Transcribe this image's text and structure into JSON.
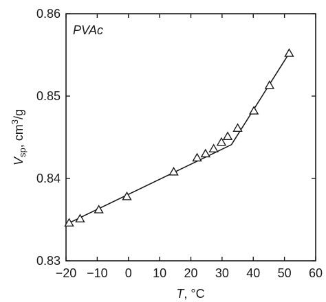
{
  "chart_data": {
    "type": "scatter",
    "panel_label": "PVAc",
    "xlabel_var": "T",
    "xlabel_unit": ", °C",
    "ylabel_var": "V",
    "ylabel_sub": "sp",
    "ylabel_unit": ", cm",
    "ylabel_sup": "3",
    "ylabel_tail": "/g",
    "xlim": [
      -20,
      60
    ],
    "ylim": [
      0.83,
      0.86
    ],
    "x_ticks": [
      -20,
      -10,
      0,
      10,
      20,
      30,
      40,
      50,
      60
    ],
    "x_tick_labels": [
      "−20",
      "−10",
      "0",
      "10",
      "20",
      "30",
      "40",
      "50",
      "60"
    ],
    "y_ticks": [
      0.83,
      0.84,
      0.85,
      0.86
    ],
    "y_tick_labels": [
      "0.83",
      "0.84",
      "0.85",
      "0.86"
    ],
    "grid": false,
    "series": [
      {
        "marker": "triangle-open",
        "x": [
          -19,
          -15.5,
          -9.5,
          -0.5,
          14.5,
          22,
          24.7,
          27.3,
          29.8,
          31.8,
          35,
          40.2,
          45.2,
          51.5
        ],
        "y": [
          0.8346,
          0.8351,
          0.8362,
          0.8378,
          0.8408,
          0.8425,
          0.843,
          0.8436,
          0.8444,
          0.8451,
          0.8461,
          0.8482,
          0.8513,
          0.8552
        ]
      }
    ],
    "fit_lines": [
      {
        "x": [
          -19,
          33
        ],
        "y": [
          0.8346,
          0.8441
        ]
      },
      {
        "x": [
          33,
          51.5
        ],
        "y": [
          0.8441,
          0.8552
        ]
      }
    ]
  }
}
